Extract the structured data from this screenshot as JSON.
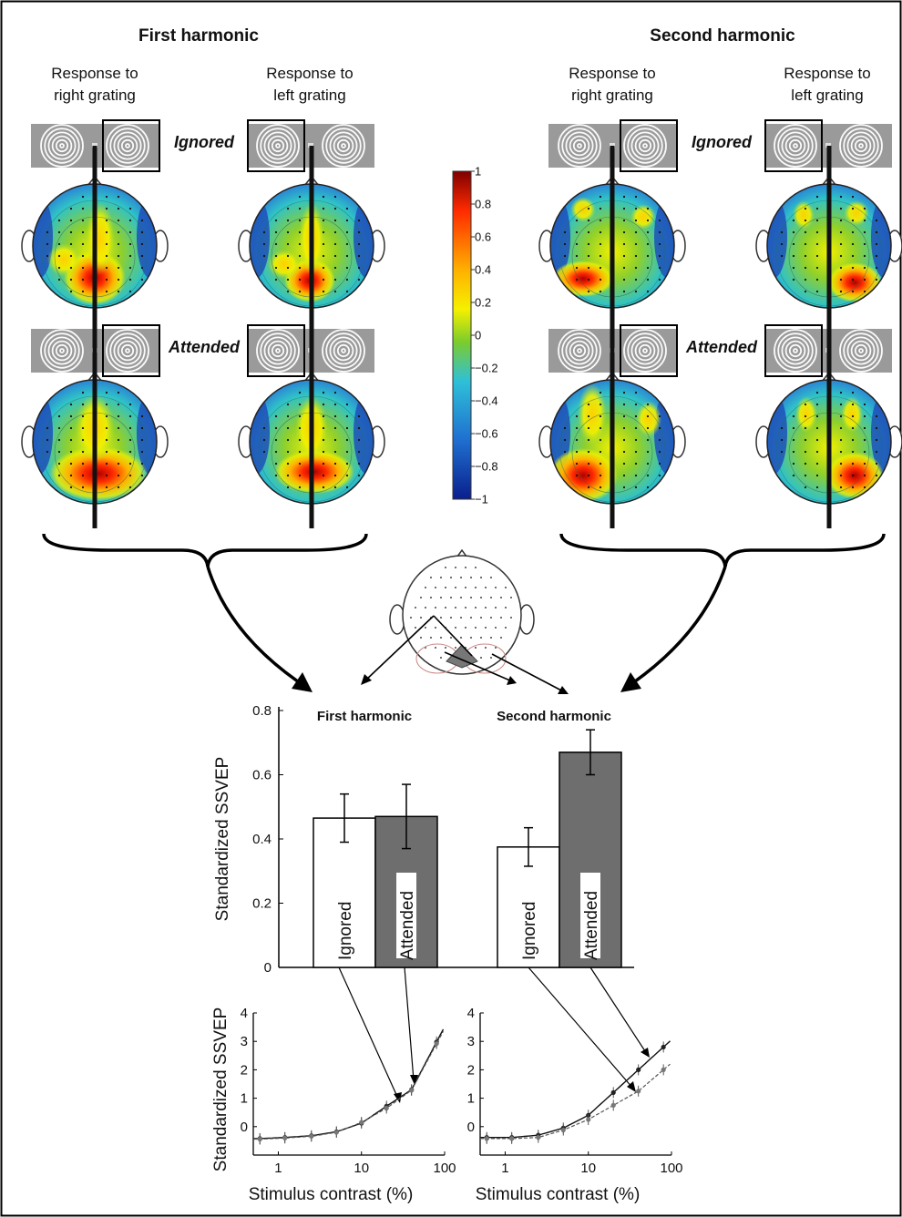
{
  "top": {
    "first_harmonic_title": "First harmonic",
    "second_harmonic_title": "Second harmonic",
    "response_right_line1": "Response to",
    "response_right_line2": "right grating",
    "response_left_line1": "Response to",
    "response_left_line2": "left grating",
    "ignored_label": "Ignored",
    "attended_label": "Attended"
  },
  "colorbar": {
    "ticks": [
      "1",
      "0.8",
      "0.6",
      "0.4",
      "0.2",
      "0",
      "−0.2",
      "−0.4",
      "−0.6",
      "−0.8",
      "−1"
    ],
    "range": [
      -1,
      1
    ],
    "colors": [
      "#7f0000",
      "#ff2a00",
      "#ffb000",
      "#f5f000",
      "#7ccc2c",
      "#2ec0d8",
      "#1f6fd0",
      "#0a1f8c"
    ]
  },
  "chart_data": [
    {
      "type": "bar",
      "ylabel": "Standardized SSVEP",
      "ylim": [
        0,
        0.8
      ],
      "yticks": [
        "0",
        "0.2",
        "0.4",
        "0.6",
        "0.8"
      ],
      "groups": [
        {
          "name": "First harmonic",
          "bars": [
            {
              "label": "Ignored",
              "value": 0.465,
              "error": 0.075,
              "color": "#ffffff"
            },
            {
              "label": "Attended",
              "value": 0.47,
              "error": 0.1,
              "color": "#6e6e6e"
            }
          ]
        },
        {
          "name": "Second harmonic",
          "bars": [
            {
              "label": "Ignored",
              "value": 0.375,
              "error": 0.06,
              "color": "#ffffff"
            },
            {
              "label": "Attended",
              "value": 0.67,
              "error": 0.07,
              "color": "#6e6e6e"
            }
          ]
        }
      ]
    },
    {
      "type": "line",
      "xscale": "log",
      "xlim": [
        0.5,
        100
      ],
      "ylim": [
        -1,
        4
      ],
      "xticks": [
        "1",
        "10",
        "100"
      ],
      "yticks": [
        "0",
        "1",
        "2",
        "3",
        "4"
      ],
      "xlabel": "Stimulus contrast (%)",
      "ylabel": "Standardized SSVEP",
      "x": [
        0.6,
        1.2,
        2.5,
        5,
        10,
        20,
        40,
        80
      ],
      "series": [
        {
          "values": [
            -0.42,
            -0.38,
            -0.32,
            -0.18,
            0.12,
            0.72,
            1.3,
            2.98
          ]
        },
        {
          "values": [
            -0.44,
            -0.4,
            -0.34,
            -0.2,
            0.15,
            0.65,
            1.28,
            2.92
          ]
        }
      ]
    },
    {
      "type": "line",
      "xscale": "log",
      "xlim": [
        0.5,
        100
      ],
      "ylim": [
        -1,
        4
      ],
      "xticks": [
        "1",
        "10",
        "100"
      ],
      "yticks": [
        "0",
        "1",
        "2",
        "3",
        "4"
      ],
      "xlabel": "Stimulus contrast (%)",
      "x": [
        0.6,
        1.2,
        2.5,
        5,
        10,
        20,
        40,
        80
      ],
      "series": [
        {
          "values": [
            -0.38,
            -0.38,
            -0.3,
            -0.05,
            0.4,
            1.2,
            2.0,
            2.8
          ]
        },
        {
          "values": [
            -0.42,
            -0.42,
            -0.38,
            -0.12,
            0.25,
            0.75,
            1.25,
            2.0
          ]
        }
      ]
    }
  ]
}
